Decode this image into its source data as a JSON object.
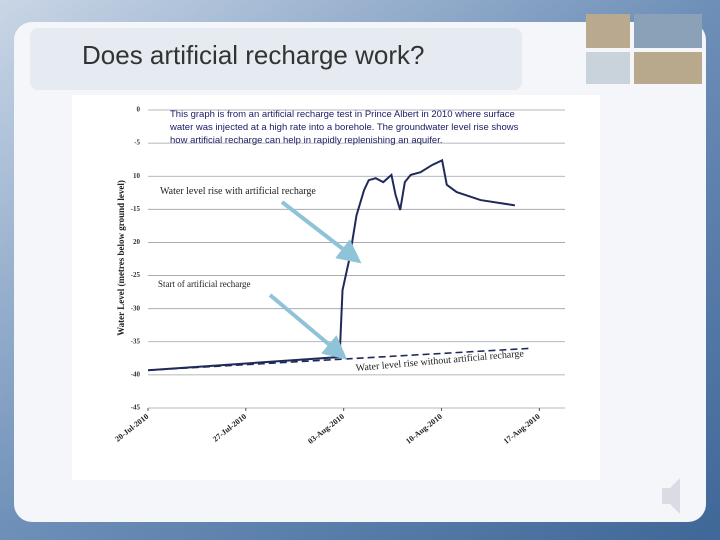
{
  "slide": {
    "title": "Does artificial recharge work?"
  },
  "chart_data": {
    "type": "line",
    "description": [
      "This graph is from an artificial recharge test in Prince Albert in 2010 where surface",
      "water was injected at a high rate into a borehole.  The  groundwater level rise shows",
      "how artificial recharge can help in rapidly replenishing an aquifer."
    ],
    "y_label": "Water Level (metres below ground level)",
    "annotations": [
      "Water level rise with artificial recharge",
      "Start of artificial recharge",
      "Water level rise without artificial recharge"
    ],
    "series": [
      {
        "color": "#1f2a5a",
        "dash": false,
        "x": [
          "2010-07-20T00:00",
          "2010-08-02T17:00",
          "2010-08-02T22:00",
          "2010-08-03T10:00",
          "2010-08-03T22:00",
          "2010-08-04T11:00",
          "2010-08-04T19:00",
          "2010-08-05T07:00",
          "2010-08-05T20:00",
          "2010-08-06T10:00",
          "2010-08-06T17:00",
          "2010-08-07T01:00",
          "2010-08-07T09:00",
          "2010-08-07T19:00",
          "2010-08-08T12:00",
          "2010-08-09T08:00",
          "2010-08-10T01:00",
          "2010-08-10T09:00",
          "2010-08-11T02:00",
          "2010-08-12T19:00",
          "2010-08-15T06:00"
        ],
        "values": [
          -39.3,
          -37.3,
          -27.2,
          -22.4,
          -15.9,
          -12.1,
          -10.6,
          -10.3,
          -10.9,
          -9.8,
          -12.8,
          -15.1,
          -10.9,
          -9.8,
          -9.4,
          -8.3,
          -7.6,
          -11.3,
          -12.4,
          -13.6,
          -14.4
        ]
      },
      {
        "color": "#1f2a5a",
        "dash": true,
        "x": [
          "2010-07-20T00:00",
          "2010-08-16T07:00"
        ],
        "values": [
          -39.3,
          -36.0
        ]
      }
    ],
    "xlim": [
      "2010-07-20T00:00",
      "2010-08-18T20:00"
    ],
    "xticks": [
      {
        "value": "2010-07-20T00:00",
        "label": "20-Jul-2010"
      },
      {
        "value": "2010-07-27T00:00",
        "label": "27-Jul-2010"
      },
      {
        "value": "2010-08-03T00:00",
        "label": "03-Aug-2010"
      },
      {
        "value": "2010-08-10T00:00",
        "label": "10-Aug-2010"
      },
      {
        "value": "2010-08-17T00:00",
        "label": "17-Aug-2010"
      }
    ],
    "ylim": [
      0,
      -45
    ],
    "yticks": [
      0,
      -5,
      {
        "value": -10,
        "label": "10"
      },
      -15,
      {
        "value": -20,
        "label": "20"
      },
      -25,
      -30,
      -35,
      -40,
      -45
    ],
    "grid": true
  }
}
